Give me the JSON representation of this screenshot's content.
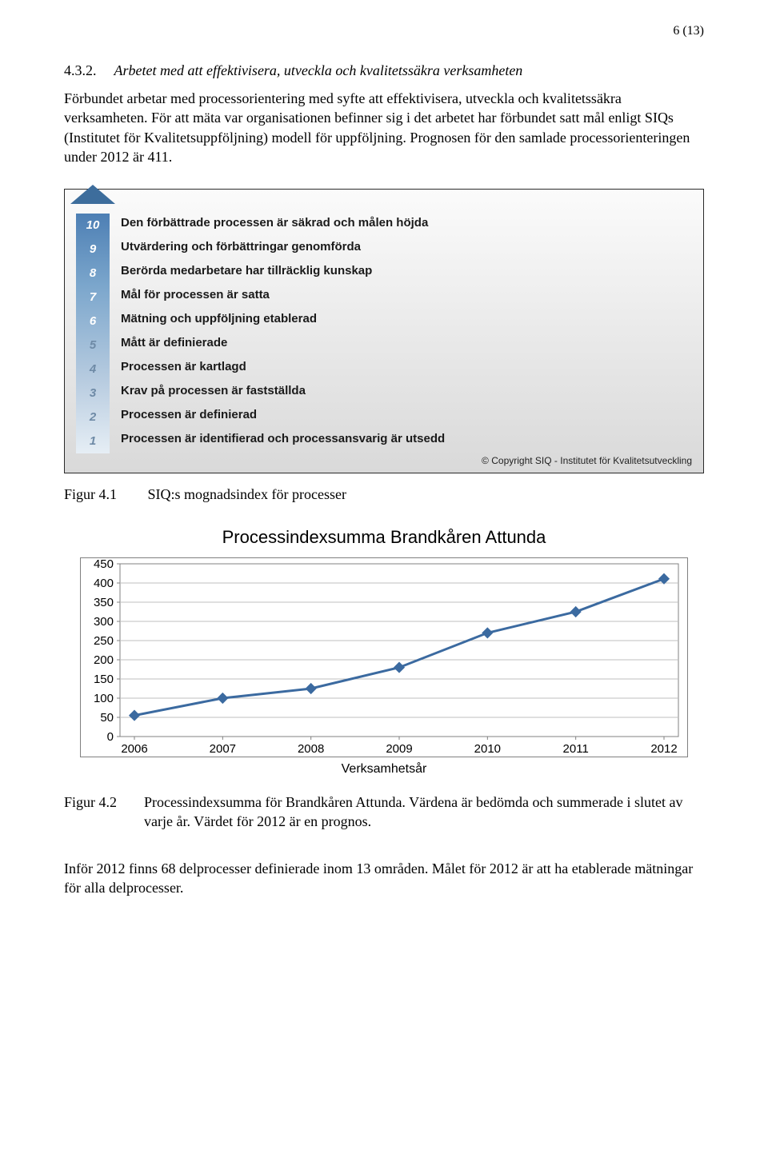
{
  "page_number": "6 (13)",
  "section": {
    "num": "4.3.2.",
    "title": "Arbetet med att effektivisera, utveckla och kvalitetssäkra verksamheten"
  },
  "body_paragraph": "Förbundet arbetar med processorientering med syfte att effektivisera, utveckla och kvalitetssäkra verksamheten. För att mäta var organisationen befinner sig i det arbetet har förbundet satt mål enligt SIQs (Institutet för Kvalitetsuppföljning) modell för uppföljning. Prognosen för den samlade processorienteringen under 2012 är 411.",
  "maturity": {
    "levels": [
      {
        "n": "10",
        "label": "Den förbättrade processen är säkrad och målen höjda"
      },
      {
        "n": "9",
        "label": "Utvärdering och förbättringar genomförda"
      },
      {
        "n": "8",
        "label": "Berörda medarbetare har tillräcklig kunskap"
      },
      {
        "n": "7",
        "label": "Mål för processen är satta"
      },
      {
        "n": "6",
        "label": "Mätning och uppföljning etablerad"
      },
      {
        "n": "5",
        "label": "Mått är definierade"
      },
      {
        "n": "4",
        "label": "Processen är kartlagd"
      },
      {
        "n": "3",
        "label": "Krav på processen är fastställda"
      },
      {
        "n": "2",
        "label": "Processen är definierad"
      },
      {
        "n": "1",
        "label": "Processen är identifierad och processansvarig är utsedd"
      }
    ],
    "copyright": "© Copyright  SIQ - Institutet för Kvalitetsutveckling",
    "arrow_color_top": "#3d6d9c"
  },
  "figure1": {
    "label": "Figur 4.1",
    "caption": "SIQ:s mognadsindex för processer"
  },
  "chart": {
    "type": "line",
    "title": "Processindexsumma Brandkåren Attunda",
    "x_categories": [
      "2006",
      "2007",
      "2008",
      "2009",
      "2010",
      "2011",
      "2012"
    ],
    "y_values": [
      55,
      100,
      125,
      180,
      270,
      325,
      411
    ],
    "ylim": [
      0,
      450
    ],
    "ytick_step": 50,
    "yticks": [
      "0",
      "50",
      "100",
      "150",
      "200",
      "250",
      "300",
      "350",
      "400",
      "450"
    ],
    "x_axis_title": "Verksamhetsår",
    "line_color": "#3b6aa0",
    "marker_color": "#3b6aa0",
    "marker_radius": 5,
    "line_width": 3,
    "grid_color": "#bfbfbf",
    "axis_color": "#808080",
    "outer_border_color": "#808080",
    "background_color": "#ffffff",
    "tick_font_family": "Arial",
    "tick_font_size": 15
  },
  "figure2": {
    "label": "Figur 4.2",
    "caption": "Processindexsumma för Brandkåren Attunda. Värdena är bedömda och summerade i slutet av varje år. Värdet för 2012 är en prognos."
  },
  "closing_paragraph": "Inför 2012 finns 68 delprocesser definierade inom 13 områden. Målet för 2012 är att ha etablerade mätningar för alla delprocesser."
}
